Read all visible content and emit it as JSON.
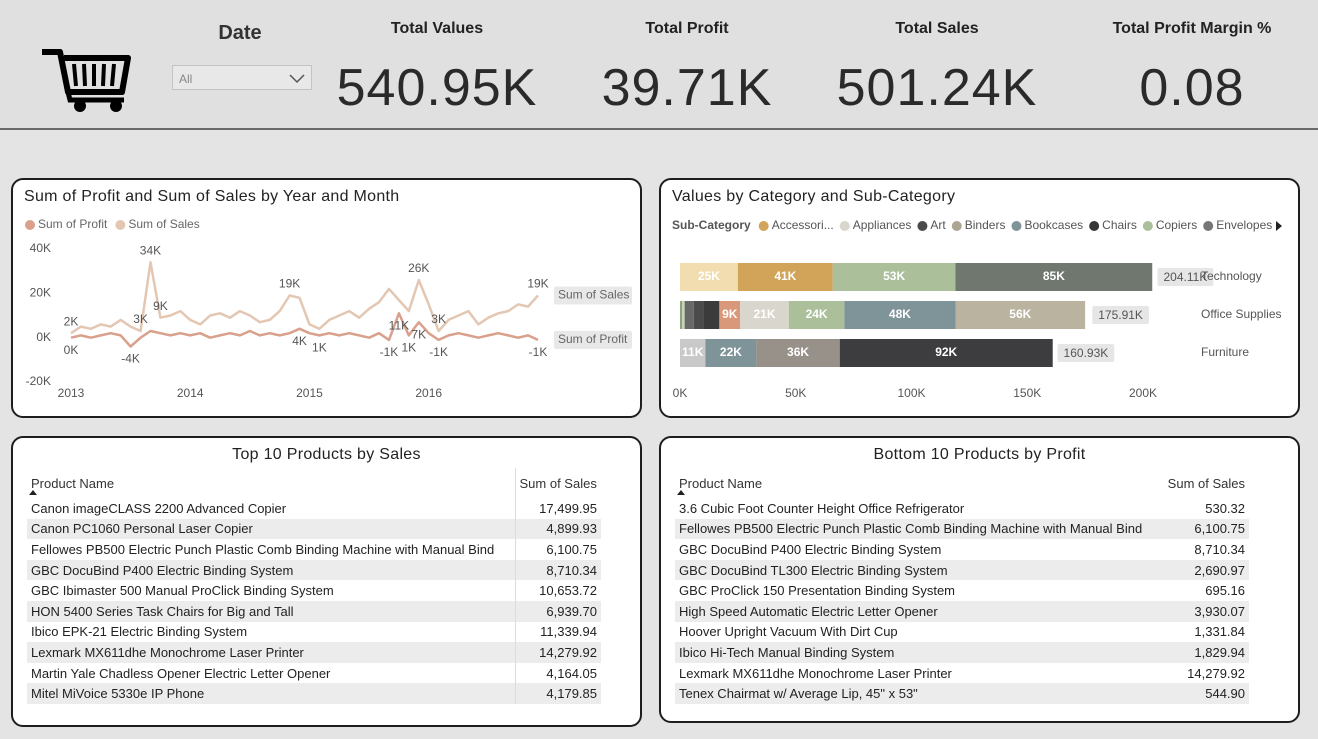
{
  "header": {
    "date_label": "Date",
    "date_value": "All",
    "kpis": [
      {
        "label": "Total Values",
        "value": "540.95K"
      },
      {
        "label": "Total Profit",
        "value": "39.71K"
      },
      {
        "label": "Total Sales",
        "value": "501.24K"
      },
      {
        "label": "Total Profit Margin %",
        "value": "0.08"
      }
    ]
  },
  "chart_data": [
    {
      "type": "line",
      "title": "Sum of Profit and Sum of Sales by Year and Month",
      "categories": [
        "2013",
        null,
        null,
        null,
        null,
        null,
        null,
        null,
        null,
        null,
        null,
        null,
        "2014",
        null,
        null,
        null,
        null,
        null,
        null,
        null,
        null,
        null,
        null,
        null,
        "2015",
        null,
        null,
        null,
        null,
        null,
        null,
        null,
        null,
        null,
        null,
        null,
        "2016",
        null,
        null,
        null,
        null,
        null,
        null,
        null,
        null,
        null,
        null,
        null
      ],
      "series": [
        {
          "name": "Sum of Profit",
          "color": "#d9a08c",
          "values": [
            0,
            1000,
            0,
            1000,
            2000,
            1000,
            -4000,
            0,
            3000,
            2000,
            1000,
            2000,
            1000,
            2000,
            0,
            1000,
            2000,
            1000,
            3000,
            1000,
            2000,
            1000,
            2000,
            4000,
            2000,
            1000,
            2000,
            1000,
            2000,
            1000,
            0,
            2000,
            -1000,
            11000,
            1000,
            7000,
            2000,
            -1000,
            1000,
            2000,
            1000,
            0,
            1000,
            2000,
            1000,
            0,
            1000,
            -1000
          ],
          "value_labels": [
            "0K",
            null,
            null,
            null,
            null,
            null,
            "-4K",
            null,
            null,
            null,
            null,
            null,
            null,
            null,
            null,
            null,
            null,
            null,
            null,
            null,
            null,
            null,
            null,
            "4K",
            null,
            "1K",
            null,
            null,
            null,
            null,
            null,
            null,
            "-1K",
            "11K",
            "1K",
            "7K",
            null,
            "-1K",
            null,
            null,
            null,
            null,
            null,
            null,
            null,
            null,
            null,
            "-1K"
          ]
        },
        {
          "name": "Sum of Sales",
          "color": "#e3c7b3",
          "values": [
            2000,
            5000,
            4000,
            6000,
            5000,
            8000,
            5000,
            3000,
            34000,
            9000,
            10000,
            12000,
            8000,
            6000,
            10000,
            11000,
            9000,
            12000,
            10000,
            7000,
            8000,
            12000,
            19000,
            18000,
            6000,
            4000,
            8000,
            10000,
            12000,
            9000,
            13000,
            16000,
            22000,
            17000,
            12000,
            26000,
            15000,
            3000,
            8000,
            10000,
            12000,
            6000,
            9000,
            11000,
            12000,
            15000,
            14000,
            19000
          ],
          "value_labels": [
            "2K",
            null,
            null,
            null,
            null,
            null,
            null,
            "3K",
            "34K",
            "9K",
            null,
            null,
            null,
            null,
            null,
            null,
            null,
            null,
            null,
            null,
            null,
            null,
            "19K",
            null,
            null,
            null,
            null,
            null,
            null,
            null,
            null,
            null,
            null,
            null,
            null,
            "26K",
            null,
            "3K",
            null,
            null,
            null,
            null,
            null,
            null,
            null,
            null,
            null,
            "19K"
          ]
        }
      ],
      "ylim": [
        -20000,
        40000
      ],
      "yticks": [
        {
          "value": -20000,
          "label": "-20K"
        },
        {
          "value": 0,
          "label": "0K"
        },
        {
          "value": 20000,
          "label": "20K"
        },
        {
          "value": 40000,
          "label": "40K"
        }
      ],
      "grid": false
    },
    {
      "type": "bar",
      "orientation": "horizontal",
      "stacked": true,
      "title": "Values by Category and Sub-Category",
      "legend_title": "Sub-Category",
      "legend": [
        {
          "name": "Accessori...",
          "color": "#d2a45a"
        },
        {
          "name": "Appliances",
          "color": "#d9d6cd"
        },
        {
          "name": "Art",
          "color": "#4a4a4a"
        },
        {
          "name": "Binders",
          "color": "#aca591"
        },
        {
          "name": "Bookcases",
          "color": "#7f9498"
        },
        {
          "name": "Chairs",
          "color": "#363636"
        },
        {
          "name": "Copiers",
          "color": "#aabf9a"
        },
        {
          "name": "Envelopes",
          "color": "#767676"
        }
      ],
      "categories": [
        "Technology",
        "Office Supplies",
        "Furniture"
      ],
      "segments": [
        [
          {
            "value": 25000,
            "label": "25K",
            "color": "#f1ddb0"
          },
          {
            "value": 41000,
            "label": "41K",
            "color": "#d2a45a"
          },
          {
            "value": 53000,
            "label": "53K",
            "color": "#aabf9a"
          },
          {
            "value": 85000,
            "label": "85K",
            "color": "#6f776f"
          }
        ],
        [
          {
            "value": 1000,
            "color": "#8da37f"
          },
          {
            "value": 1000,
            "color": "#cbd6b5"
          },
          {
            "value": 4000,
            "color": "#686868"
          },
          {
            "value": 4000,
            "color": "#4b4b4b"
          },
          {
            "value": 7000,
            "color": "#3b3b3b"
          },
          {
            "value": 9000,
            "label": "9K",
            "color": "#d9987a"
          },
          {
            "value": 21000,
            "label": "21K",
            "color": "#d9d6cd"
          },
          {
            "value": 24000,
            "label": "24K",
            "color": "#aabf9a"
          },
          {
            "value": 48000,
            "label": "48K",
            "color": "#7f9498"
          },
          {
            "value": 56000,
            "label": "56K",
            "color": "#b9b39f"
          }
        ],
        [
          {
            "value": 11000,
            "label": "11K",
            "color": "#c9c9c9"
          },
          {
            "value": 22000,
            "label": "22K",
            "color": "#7f9498"
          },
          {
            "value": 36000,
            "label": "36K",
            "color": "#98918a"
          },
          {
            "value": 92000,
            "label": "92K",
            "color": "#3d3d3f"
          }
        ]
      ],
      "totals": [
        204110,
        175910,
        160930
      ],
      "total_labels": [
        "204.11K",
        "175.91K",
        "160.93K"
      ],
      "xlim": [
        0,
        210000
      ],
      "xticks": [
        {
          "value": 0,
          "label": "0K"
        },
        {
          "value": 50000,
          "label": "50K"
        },
        {
          "value": 100000,
          "label": "100K"
        },
        {
          "value": 150000,
          "label": "150K"
        },
        {
          "value": 200000,
          "label": "200K"
        }
      ]
    }
  ],
  "tables": [
    {
      "title": "Top 10 Products by Sales",
      "columns": [
        "Product Name",
        "Sum of Sales"
      ],
      "rows": [
        [
          "Canon imageCLASS 2200 Advanced Copier",
          "17,499.95"
        ],
        [
          "Canon PC1060 Personal Laser Copier",
          "4,899.93"
        ],
        [
          "Fellowes PB500 Electric Punch Plastic Comb Binding Machine with Manual Bind",
          "6,100.75"
        ],
        [
          "GBC DocuBind P400 Electric Binding System",
          "8,710.34"
        ],
        [
          "GBC Ibimaster 500 Manual ProClick Binding System",
          "10,653.72"
        ],
        [
          "HON 5400 Series Task Chairs for Big and Tall",
          "6,939.70"
        ],
        [
          "Ibico EPK-21 Electric Binding System",
          "11,339.94"
        ],
        [
          "Lexmark MX611dhe Monochrome Laser Printer",
          "14,279.92"
        ],
        [
          "Martin Yale Chadless Opener Electric Letter Opener",
          "4,164.05"
        ],
        [
          "Mitel MiVoice 5330e IP Phone",
          "4,179.85"
        ]
      ]
    },
    {
      "title": "Bottom 10 Products by Profit",
      "columns": [
        "Product Name",
        "Sum of Sales"
      ],
      "rows": [
        [
          "3.6 Cubic Foot Counter Height Office Refrigerator",
          "530.32"
        ],
        [
          "Fellowes PB500 Electric Punch Plastic Comb Binding Machine with Manual Bind",
          "6,100.75"
        ],
        [
          "GBC DocuBind P400 Electric Binding System",
          "8,710.34"
        ],
        [
          "GBC DocuBind TL300 Electric Binding System",
          "2,690.97"
        ],
        [
          "GBC ProClick 150 Presentation Binding System",
          "695.16"
        ],
        [
          "High Speed Automatic Electric Letter Opener",
          "3,930.07"
        ],
        [
          "Hoover Upright Vacuum With Dirt Cup",
          "1,331.84"
        ],
        [
          "Ibico Hi-Tech Manual Binding System",
          "1,829.94"
        ],
        [
          "Lexmark MX611dhe Monochrome Laser Printer",
          "14,279.92"
        ],
        [
          "Tenex Chairmat w/ Average Lip, 45\" x 53\"",
          "544.90"
        ]
      ]
    }
  ]
}
